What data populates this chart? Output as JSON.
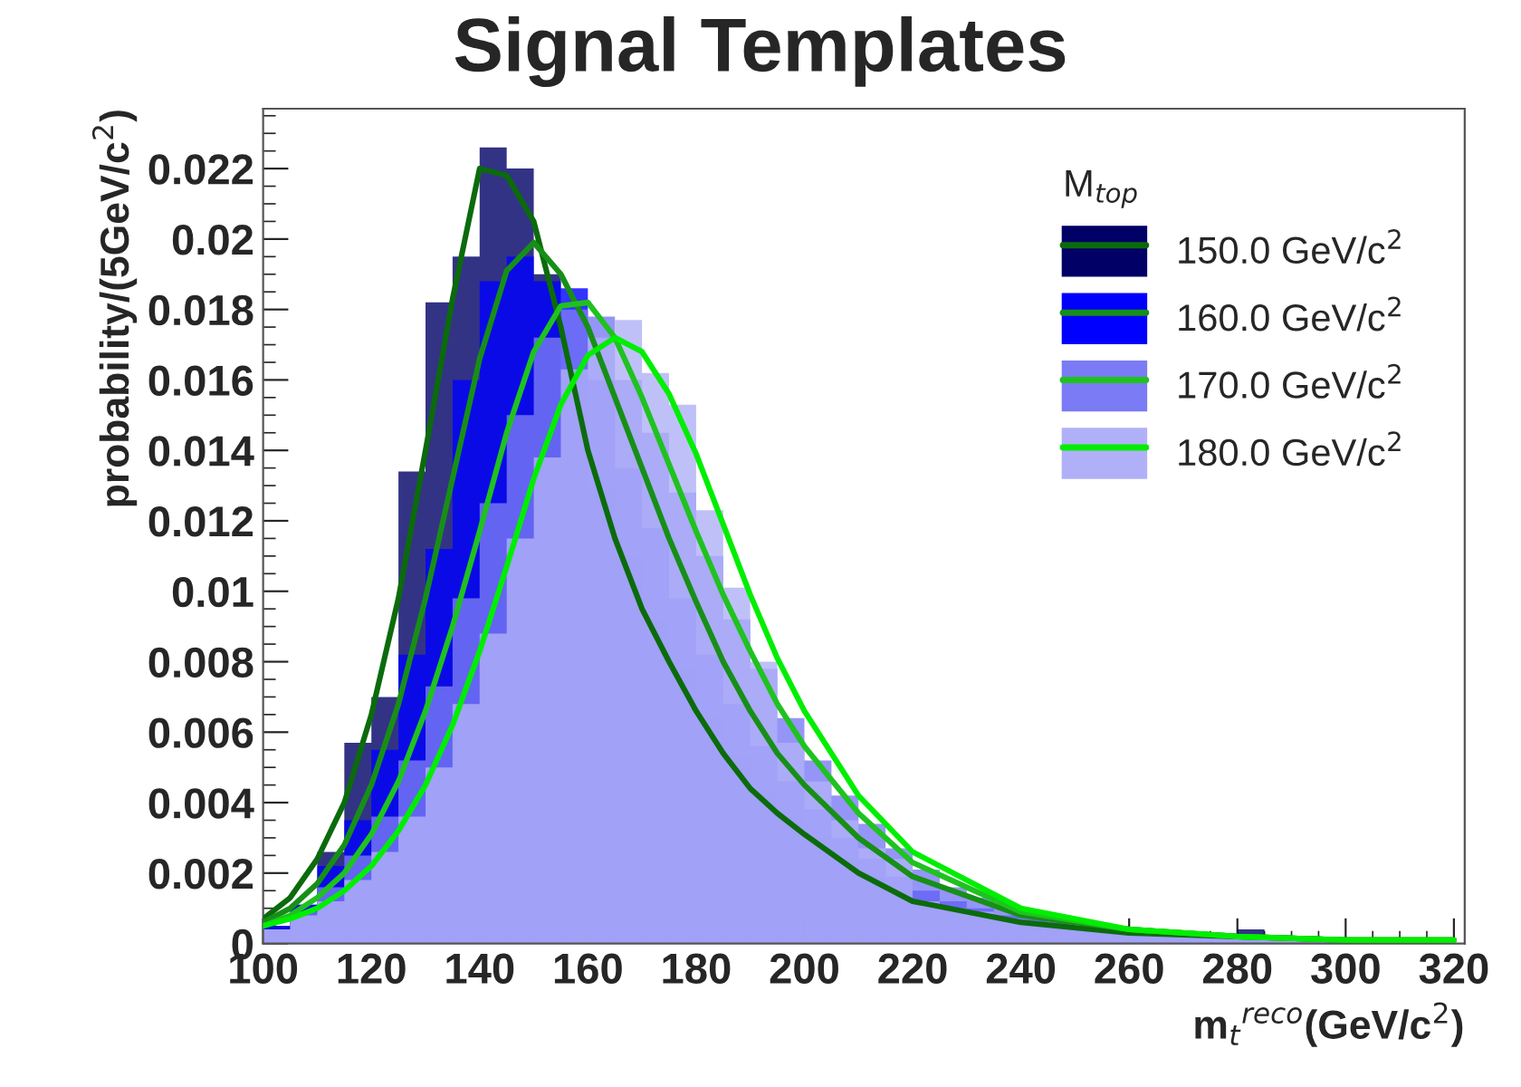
{
  "chart_data": {
    "type": "histogram",
    "title": "Signal Templates",
    "xlabel": "m$_{t}$$^{reco}$(GeV/c$^{2}$)",
    "ylabel": "probability/(5GeV/c$^{2}$)",
    "legend_title": "M$_{top}$",
    "legend": "top right",
    "bins": [
      100,
      105,
      110,
      115,
      120,
      125,
      130,
      135,
      140,
      145,
      150,
      155,
      160,
      165,
      170,
      175,
      180,
      185,
      190,
      195,
      200,
      205,
      210,
      215,
      220,
      225,
      230,
      235,
      240,
      245,
      250,
      255,
      260,
      265,
      270,
      275,
      280,
      285,
      290,
      295,
      300,
      305,
      310,
      315,
      320
    ],
    "xlim": [
      100,
      322
    ],
    "xticks": [
      100,
      120,
      140,
      160,
      180,
      200,
      220,
      240,
      260,
      280,
      300,
      320
    ],
    "ylim": [
      0,
      0.0237
    ],
    "yticks": [
      0,
      0.002,
      0.004,
      0.006,
      0.008,
      0.01,
      0.012,
      0.014,
      0.016,
      0.018,
      0.02,
      0.022
    ],
    "series": [
      {
        "type": "histogram",
        "name": "150.0 GeV/c$^{2}$",
        "color": "#000066",
        "values": [
          0.0005,
          0.0011,
          0.0026,
          0.0057,
          0.007,
          0.0134,
          0.0182,
          0.0195,
          0.0226,
          0.022,
          0.019,
          0.016,
          0.013,
          0.011,
          0.0092,
          0.0078,
          0.0064,
          0.0053,
          0.0043,
          0.0036,
          0.003,
          0.0024,
          0.0019,
          0.0015,
          0.0012,
          0.001,
          0.0008,
          0.0007,
          0.0006,
          0.0005,
          0.0004,
          0.0003,
          0.0003,
          0.0003,
          0.0002,
          0.0002,
          0.0004,
          0.0001,
          0.0001,
          0.0001,
          0.0001,
          0.0001,
          0.0001,
          0.0001
        ]
      },
      {
        "type": "histogram",
        "name": "160.0 GeV/c$^{2}$",
        "color": "#0000ff",
        "values": [
          0.0005,
          0.0011,
          0.0022,
          0.0035,
          0.0055,
          0.0082,
          0.0112,
          0.016,
          0.0188,
          0.0195,
          0.0188,
          0.0186,
          0.016,
          0.0135,
          0.0118,
          0.0098,
          0.0082,
          0.0068,
          0.0056,
          0.0046,
          0.0038,
          0.003,
          0.0024,
          0.0019,
          0.0015,
          0.0012,
          0.001,
          0.0008,
          0.0007,
          0.0006,
          0.0005,
          0.0004,
          0.0004,
          0.0003,
          0.0003,
          0.0002,
          0.0002,
          0.0002,
          0.0001,
          0.0001,
          0.0001,
          0.0001,
          0.0001,
          0.0001
        ]
      },
      {
        "type": "histogram",
        "name": "170.0 GeV/c$^{2}$",
        "color": "#7b7bf5",
        "values": [
          0.0004,
          0.0009,
          0.0016,
          0.0025,
          0.0036,
          0.0052,
          0.0073,
          0.0098,
          0.0125,
          0.015,
          0.0172,
          0.018,
          0.0178,
          0.016,
          0.0145,
          0.0128,
          0.011,
          0.0092,
          0.0078,
          0.0064,
          0.0052,
          0.0042,
          0.0034,
          0.0027,
          0.0021,
          0.0016,
          0.0013,
          0.001,
          0.0008,
          0.0007,
          0.0005,
          0.0004,
          0.0004,
          0.0003,
          0.0003,
          0.0002,
          0.0002,
          0.0002,
          0.0001,
          0.0001,
          0.0001,
          0.0001,
          0.0001,
          0.0001
        ]
      },
      {
        "name": "180.0 GeV/c$^{2}$",
        "color": "#b0b0f8",
        "values": [
          0.0004,
          0.0008,
          0.0012,
          0.0018,
          0.0026,
          0.0036,
          0.005,
          0.0068,
          0.0088,
          0.0115,
          0.0138,
          0.0163,
          0.0172,
          0.0177,
          0.0162,
          0.0153,
          0.0123,
          0.0101,
          0.008,
          0.0057,
          0.0046,
          0.0035,
          0.0027,
          0.0024,
          0.0012,
          0.001,
          0.0009,
          0.0007,
          0.0006,
          0.0005,
          0.0004,
          0.0004,
          0.0003,
          0.0003,
          0.0002,
          0.0002,
          0.0002,
          0.0002,
          0.0001,
          0.0001,
          0.0001,
          0.0001,
          0.0001,
          0.0001
        ]
      },
      {
        "type": "line",
        "color": "#0b6b0b",
        "x": [
          100,
          105,
          110,
          115,
          120,
          125,
          130,
          135,
          140,
          145,
          150,
          155,
          160,
          165,
          170,
          175,
          180,
          185,
          190,
          195,
          200,
          210,
          220,
          240,
          260,
          280,
          300,
          320
        ],
        "values": [
          0.0007,
          0.0013,
          0.0024,
          0.004,
          0.0065,
          0.0098,
          0.014,
          0.0183,
          0.022,
          0.0218,
          0.0205,
          0.0175,
          0.014,
          0.0115,
          0.0095,
          0.008,
          0.0066,
          0.0054,
          0.0044,
          0.0037,
          0.0031,
          0.002,
          0.0012,
          0.0006,
          0.0003,
          0.0002,
          0.0001,
          0.0001
        ]
      },
      {
        "type": "line",
        "color": "#178f17",
        "x": [
          100,
          105,
          110,
          115,
          120,
          125,
          130,
          135,
          140,
          145,
          150,
          155,
          160,
          165,
          170,
          175,
          180,
          185,
          190,
          195,
          200,
          210,
          220,
          240,
          260,
          280,
          300,
          320
        ],
        "values": [
          0.0006,
          0.001,
          0.0017,
          0.0028,
          0.0045,
          0.0068,
          0.0098,
          0.0132,
          0.0166,
          0.0191,
          0.0199,
          0.019,
          0.0175,
          0.0155,
          0.0135,
          0.0115,
          0.0097,
          0.008,
          0.0066,
          0.0054,
          0.0045,
          0.003,
          0.0019,
          0.0008,
          0.0004,
          0.0002,
          0.0001,
          0.0001
        ]
      },
      {
        "type": "line",
        "color": "#1fc21f",
        "x": [
          100,
          105,
          110,
          115,
          120,
          125,
          130,
          135,
          140,
          145,
          150,
          155,
          160,
          165,
          170,
          175,
          180,
          185,
          190,
          195,
          200,
          210,
          220,
          240,
          260,
          280,
          300,
          320
        ],
        "values": [
          0.0005,
          0.0008,
          0.0013,
          0.002,
          0.0031,
          0.0046,
          0.0066,
          0.009,
          0.0117,
          0.0145,
          0.0168,
          0.0181,
          0.0182,
          0.0172,
          0.0155,
          0.0136,
          0.0117,
          0.0099,
          0.0083,
          0.0068,
          0.0056,
          0.0037,
          0.0023,
          0.0009,
          0.0004,
          0.0002,
          0.0001,
          0.0001
        ]
      },
      {
        "type": "line",
        "color": "#00ee00",
        "x": [
          100,
          105,
          110,
          115,
          120,
          125,
          130,
          135,
          140,
          145,
          150,
          155,
          160,
          165,
          170,
          175,
          180,
          185,
          190,
          195,
          200,
          210,
          220,
          240,
          260,
          280,
          300,
          320
        ],
        "values": [
          0.0005,
          0.0007,
          0.001,
          0.0015,
          0.0022,
          0.0032,
          0.0045,
          0.0062,
          0.0083,
          0.0107,
          0.0132,
          0.0153,
          0.0167,
          0.0172,
          0.0168,
          0.0156,
          0.0139,
          0.0119,
          0.0099,
          0.0081,
          0.0066,
          0.0042,
          0.0026,
          0.001,
          0.0004,
          0.0002,
          0.0001,
          0.0001
        ]
      }
    ]
  }
}
